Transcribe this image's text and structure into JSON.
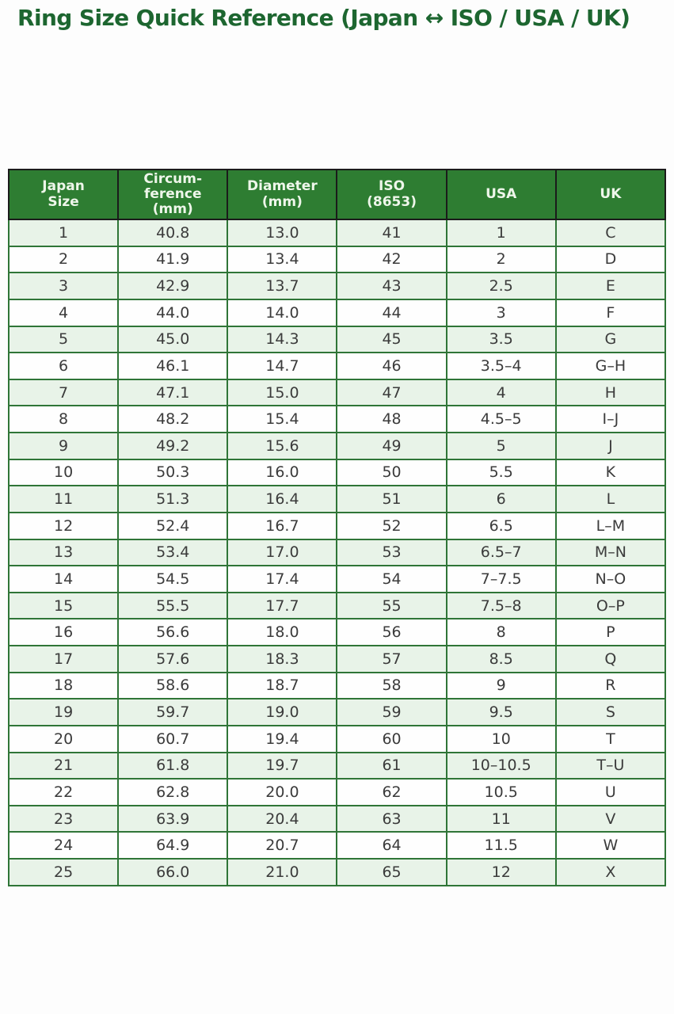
{
  "colors": {
    "page_bg": "#fdfdfd",
    "title_text": "#1d6630",
    "header_bg": "#2e7d32",
    "header_text": "#eef6ea",
    "body_text": "#3b3b3b",
    "frame_border": "#1b1b1b",
    "grid_border": "#2f7537",
    "row_alt_bg": "#e8f3e8",
    "row_bg": "#fefefe"
  },
  "chart_data": {
    "type": "table",
    "title": "Ring Size Quick Reference (Japan ↔ ISO / USA / UK)",
    "columns": [
      "Japan\nSize",
      "Circum-\nference\n(mm)",
      "Diameter\n(mm)",
      "ISO\n(8653)",
      "USA",
      "UK"
    ],
    "rows": [
      [
        "1",
        "40.8",
        "13.0",
        "41",
        "1",
        "C"
      ],
      [
        "2",
        "41.9",
        "13.4",
        "42",
        "2",
        "D"
      ],
      [
        "3",
        "42.9",
        "13.7",
        "43",
        "2.5",
        "E"
      ],
      [
        "4",
        "44.0",
        "14.0",
        "44",
        "3",
        "F"
      ],
      [
        "5",
        "45.0",
        "14.3",
        "45",
        "3.5",
        "G"
      ],
      [
        "6",
        "46.1",
        "14.7",
        "46",
        "3.5–4",
        "G–H"
      ],
      [
        "7",
        "47.1",
        "15.0",
        "47",
        "4",
        "H"
      ],
      [
        "8",
        "48.2",
        "15.4",
        "48",
        "4.5–5",
        "I–J"
      ],
      [
        "9",
        "49.2",
        "15.6",
        "49",
        "5",
        "J"
      ],
      [
        "10",
        "50.3",
        "16.0",
        "50",
        "5.5",
        "K"
      ],
      [
        "11",
        "51.3",
        "16.4",
        "51",
        "6",
        "L"
      ],
      [
        "12",
        "52.4",
        "16.7",
        "52",
        "6.5",
        "L–M"
      ],
      [
        "13",
        "53.4",
        "17.0",
        "53",
        "6.5–7",
        "M–N"
      ],
      [
        "14",
        "54.5",
        "17.4",
        "54",
        "7–7.5",
        "N–O"
      ],
      [
        "15",
        "55.5",
        "17.7",
        "55",
        "7.5–8",
        "O–P"
      ],
      [
        "16",
        "56.6",
        "18.0",
        "56",
        "8",
        "P"
      ],
      [
        "17",
        "57.6",
        "18.3",
        "57",
        "8.5",
        "Q"
      ],
      [
        "18",
        "58.6",
        "18.7",
        "58",
        "9",
        "R"
      ],
      [
        "19",
        "59.7",
        "19.0",
        "59",
        "9.5",
        "S"
      ],
      [
        "20",
        "60.7",
        "19.4",
        "60",
        "10",
        "T"
      ],
      [
        "21",
        "61.8",
        "19.7",
        "61",
        "10–10.5",
        "T–U"
      ],
      [
        "22",
        "62.8",
        "20.0",
        "62",
        "10.5",
        "U"
      ],
      [
        "23",
        "63.9",
        "20.4",
        "63",
        "11",
        "V"
      ],
      [
        "24",
        "64.9",
        "20.7",
        "64",
        "11.5",
        "W"
      ],
      [
        "25",
        "66.0",
        "21.0",
        "65",
        "12",
        "X"
      ]
    ]
  }
}
